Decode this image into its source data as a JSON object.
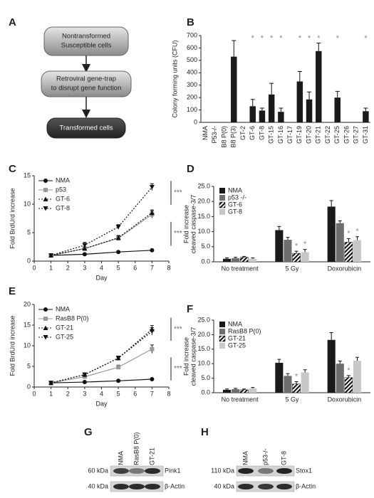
{
  "diagram": {
    "label": "A",
    "nodes": [
      {
        "lines": [
          "Nontransformed",
          "Susceptible cells"
        ]
      },
      {
        "lines": [
          "Retroviral gene-trap",
          "to disrupt gene function"
        ]
      },
      {
        "lines": [
          "Transformed cells"
        ]
      }
    ]
  },
  "chart_data": [
    {
      "label": "B",
      "type": "bar",
      "ylabel": "Colony forming units (CFU)",
      "categories": [
        "NMA",
        "P53-/-",
        "B8 P(0)",
        "B8 P(3)",
        "GT-2",
        "GT-6",
        "GT-8",
        "GT-15",
        "GT-16",
        "GT-17",
        "GT-19",
        "GT-20",
        "GT-21",
        "GT-22",
        "GT-25",
        "GT-26",
        "GT-27",
        "GT-31"
      ],
      "values": [
        0,
        0,
        0,
        530,
        0,
        130,
        95,
        225,
        85,
        0,
        330,
        185,
        575,
        0,
        200,
        0,
        0,
        90
      ],
      "errors": [
        null,
        null,
        null,
        130,
        null,
        55,
        20,
        90,
        30,
        null,
        80,
        60,
        65,
        null,
        50,
        null,
        null,
        25
      ],
      "significance": [
        null,
        null,
        null,
        null,
        null,
        "*",
        "*",
        "*",
        "*",
        null,
        "*",
        "*",
        "*",
        null,
        "*",
        null,
        null,
        "*"
      ],
      "color": "#1a1a1a",
      "ylim": [
        0,
        700
      ],
      "yticks": [
        0,
        100,
        200,
        300,
        400,
        500,
        600,
        700
      ]
    },
    {
      "label": "C",
      "type": "line",
      "xlabel": "Day",
      "ylabel": "Fold BrdUrd increase",
      "x": [
        1,
        3,
        5,
        7
      ],
      "xlim": [
        0,
        8
      ],
      "xticks": [
        0,
        1,
        2,
        3,
        4,
        5,
        6,
        7,
        8
      ],
      "ylim": [
        0,
        15
      ],
      "yticks": [
        0,
        5,
        10,
        15
      ],
      "legend": "upper left",
      "series": [
        {
          "name": "NMA",
          "color": "#111111",
          "marker": "circle",
          "linestyle": "solid",
          "values": [
            1,
            1.2,
            1.6,
            1.9
          ],
          "errors": [
            0.1,
            0.1,
            0.1,
            0.1
          ]
        },
        {
          "name": "p53",
          "color": "#999999",
          "marker": "square",
          "linestyle": "solid",
          "values": [
            1,
            2.2,
            4,
            8.2
          ],
          "errors": [
            0.2,
            0.3,
            0.4,
            0.6
          ]
        },
        {
          "name": "GT-6",
          "color": "#111111",
          "marker": "triangle",
          "linestyle": "dotted",
          "values": [
            1,
            2.2,
            4.1,
            8.5
          ],
          "errors": [
            0.2,
            0.3,
            0.4,
            0.5
          ]
        },
        {
          "name": "GT-8",
          "color": "#111111",
          "marker": "triangle-down",
          "linestyle": "dotted",
          "values": [
            1,
            2.8,
            6,
            13
          ],
          "errors": [
            0.2,
            0.5,
            0.4,
            0.6
          ]
        }
      ],
      "annotations": [
        "***",
        "***"
      ]
    },
    {
      "label": "D",
      "type": "grouped-bar",
      "ylabel": [
        "Fold increase",
        "cleaved caspase-3/7"
      ],
      "categories": [
        "No treatment",
        "5 Gy",
        "Doxorubicin"
      ],
      "ylim": [
        0,
        25
      ],
      "yticks": [
        {
          "value": 0,
          "label": "0.0"
        },
        {
          "value": 5,
          "label": "5.0"
        },
        {
          "value": 10,
          "label": "10.0"
        },
        {
          "value": 15,
          "label": "15.0"
        },
        {
          "value": 20,
          "label": "20.0"
        },
        {
          "value": 25,
          "label": "25.0"
        }
      ],
      "legend": "upper left",
      "series": [
        {
          "name": "NMA",
          "color": "#1a1a1a",
          "values": [
            1,
            10.5,
            18.3
          ],
          "errors": [
            0.3,
            1.2,
            2.0
          ],
          "significance": [
            null,
            null,
            null
          ]
        },
        {
          "name": "p53 -/-",
          "color": "#6e6e6e",
          "values": [
            1.2,
            7.3,
            12.8
          ],
          "errors": [
            0.3,
            0.8,
            0.8
          ],
          "significance": [
            null,
            null,
            null
          ]
        },
        {
          "name": "GT-6",
          "color": "#111111",
          "hatch": true,
          "values": [
            1.5,
            2.8,
            6.5
          ],
          "errors": [
            0.3,
            0.7,
            1.2
          ],
          "significance": [
            null,
            "*",
            "*"
          ]
        },
        {
          "name": "GT-8",
          "color": "#c8c8c8",
          "values": [
            1,
            3.2,
            7.2
          ],
          "errors": [
            0.3,
            0.9,
            1.1
          ],
          "significance": [
            null,
            "*",
            "*"
          ]
        }
      ]
    },
    {
      "label": "E",
      "type": "line",
      "xlabel": "Day",
      "ylabel": "Fold BrdUrd increase",
      "x": [
        1,
        3,
        5,
        7
      ],
      "xlim": [
        0,
        8
      ],
      "xticks": [
        0,
        1,
        2,
        3,
        4,
        5,
        6,
        7,
        8
      ],
      "ylim": [
        0,
        20
      ],
      "yticks": [
        0,
        5,
        10,
        15,
        20
      ],
      "legend": "upper left",
      "series": [
        {
          "name": "NMA",
          "color": "#111111",
          "marker": "circle",
          "linestyle": "solid",
          "values": [
            1,
            1.2,
            1.5,
            1.9
          ],
          "errors": [
            0.1,
            0.1,
            0.1,
            0.1
          ]
        },
        {
          "name": "RasB8 P(0)",
          "color": "#999999",
          "marker": "square",
          "linestyle": "solid",
          "values": [
            1,
            2.5,
            4.8,
            9.2
          ],
          "errors": [
            0.2,
            0.3,
            0.5,
            1.0
          ]
        },
        {
          "name": "GT-21",
          "color": "#111111",
          "marker": "triangle",
          "linestyle": "dotted",
          "values": [
            1,
            3,
            7,
            14
          ],
          "errors": [
            0.2,
            0.4,
            0.5,
            0.9
          ]
        },
        {
          "name": "GT-25",
          "color": "#111111",
          "marker": "triangle-down",
          "linestyle": "dotted",
          "values": [
            1,
            3,
            7,
            13.5
          ],
          "errors": [
            0.2,
            0.4,
            0.5,
            0.9
          ]
        }
      ],
      "annotations": [
        "***",
        "***"
      ]
    },
    {
      "label": "F",
      "type": "grouped-bar",
      "ylabel": [
        "Fold increase",
        "cleaved caspase-3/7"
      ],
      "categories": [
        "No treatment",
        "5 Gy",
        "Doxorubicin"
      ],
      "ylim": [
        0,
        25
      ],
      "yticks": [
        {
          "value": 0,
          "label": "0.0"
        },
        {
          "value": 5,
          "label": "5.0"
        },
        {
          "value": 10,
          "label": "10.0"
        },
        {
          "value": 15,
          "label": "15.0"
        },
        {
          "value": 20,
          "label": "20.0"
        },
        {
          "value": 25,
          "label": "25.0"
        }
      ],
      "legend": "upper left",
      "series": [
        {
          "name": "NMA",
          "color": "#1a1a1a",
          "values": [
            1,
            10.3,
            18.2
          ],
          "errors": [
            0.3,
            1.2,
            2.5
          ],
          "significance": [
            null,
            null,
            null
          ]
        },
        {
          "name": "RasB8 P(0)",
          "color": "#6e6e6e",
          "values": [
            1.2,
            5.8,
            10
          ],
          "errors": [
            0.3,
            0.8,
            0.9
          ],
          "significance": [
            null,
            null,
            null
          ]
        },
        {
          "name": "GT-21",
          "color": "#111111",
          "hatch": true,
          "values": [
            1,
            3,
            5.2
          ],
          "errors": [
            0.3,
            0.8,
            0.7
          ],
          "significance": [
            null,
            "*",
            "*"
          ]
        },
        {
          "name": "GT-25",
          "color": "#c8c8c8",
          "values": [
            1.5,
            7,
            11
          ],
          "errors": [
            0.3,
            0.9,
            1.2
          ],
          "significance": [
            null,
            null,
            null
          ]
        }
      ]
    }
  ],
  "blots": [
    {
      "label": "G",
      "lanes": [
        "NMA",
        "RasB8 P(0)",
        "GT-21"
      ],
      "rows": [
        {
          "size": "60 kDa",
          "protein": "Pink1"
        },
        {
          "size": "40 kDa",
          "protein": "β-Actin"
        }
      ]
    },
    {
      "label": "H",
      "lanes": [
        "NMA",
        "p53-/-",
        "GT-8"
      ],
      "rows": [
        {
          "size": "110 kDa",
          "protein": "Stox1"
        },
        {
          "size": "40 kDa",
          "protein": "β-Actin"
        }
      ]
    }
  ]
}
